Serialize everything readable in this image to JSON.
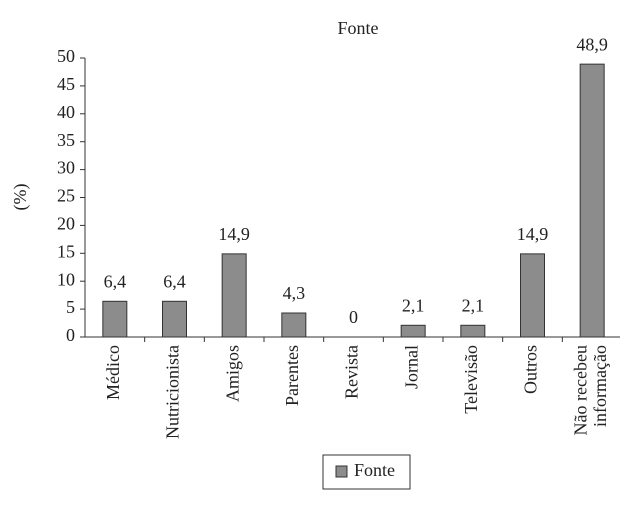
{
  "chart_data": {
    "type": "bar",
    "title": "Fonte",
    "y_label": "(%)",
    "categories": [
      "Médico",
      "Nutricionista",
      "Amigos",
      "Parentes",
      "Revista",
      "Jornal",
      "Televisão",
      "Outros",
      "Não recebeu informação"
    ],
    "series": [
      {
        "name": "Fonte",
        "color": "#8c8c8c",
        "values": [
          6.4,
          6.4,
          14.9,
          4.3,
          0,
          2.1,
          2.1,
          14.9,
          48.9
        ],
        "value_labels": [
          "6,4",
          "6,4",
          "14,9",
          "4,3",
          "0",
          "2,1",
          "2,1",
          "14,9",
          "48,9"
        ]
      }
    ],
    "ylim": [
      0,
      50
    ],
    "yticks": [
      0,
      5,
      10,
      15,
      20,
      25,
      30,
      35,
      40,
      45,
      50
    ],
    "grid": false,
    "legend": "bottom"
  }
}
